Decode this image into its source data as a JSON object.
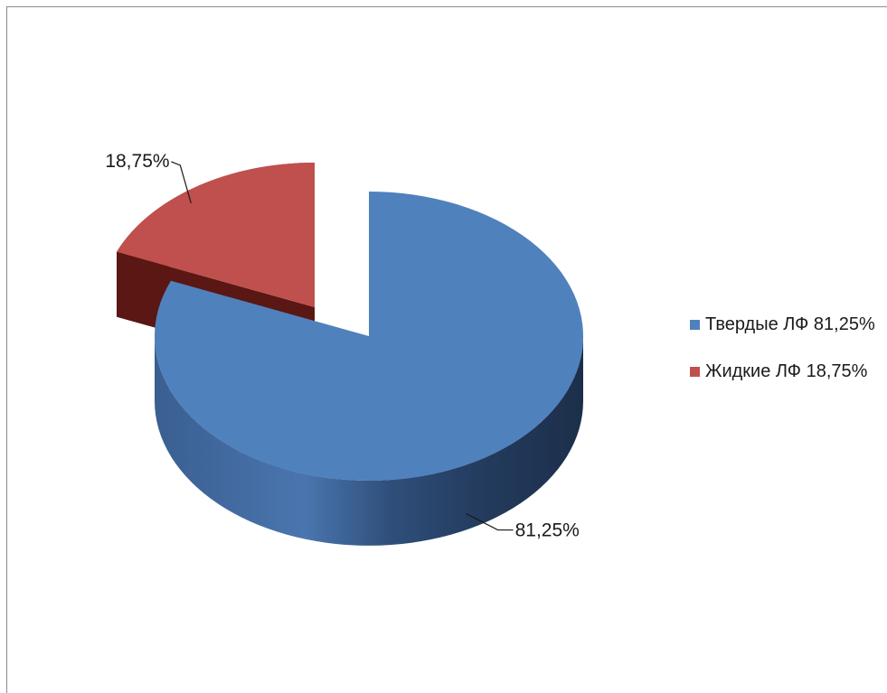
{
  "chart_data": {
    "type": "pie",
    "style": "3d-exploded",
    "categories": [
      "Твердые ЛФ",
      "Жидкие ЛФ"
    ],
    "values": [
      81.25,
      18.75
    ],
    "data_labels": [
      "81,25%",
      "18,75%"
    ],
    "legend_labels": [
      "Твердые ЛФ 81,25%",
      "Жидкие ЛФ 18,75%"
    ],
    "colors": [
      "#4F81BD",
      "#C0504D"
    ],
    "legend_position": "right",
    "title": ""
  }
}
